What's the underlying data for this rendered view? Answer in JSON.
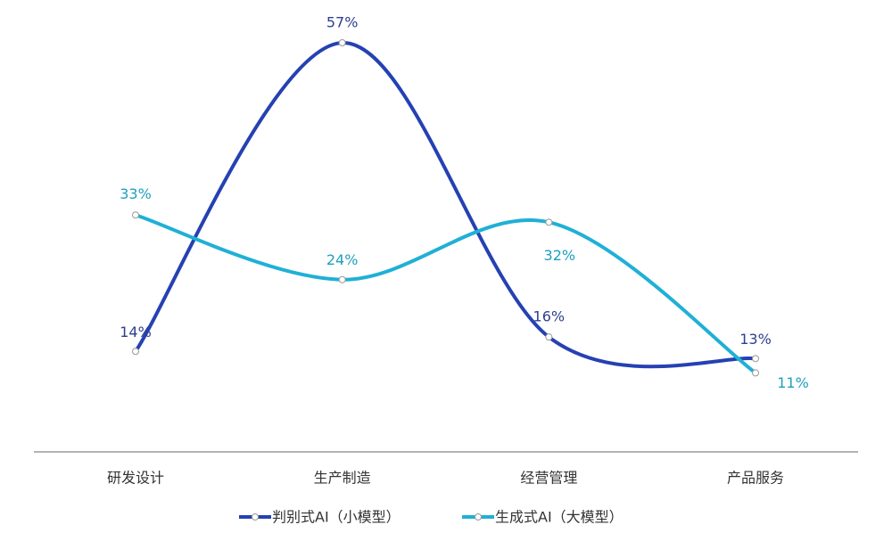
{
  "chart_data": {
    "type": "line",
    "categories": [
      "研发设计",
      "生产制造",
      "经营管理",
      "产品服务"
    ],
    "series": [
      {
        "name": "判别式AI（小模型）",
        "color": "#2541b2",
        "values": [
          14,
          57,
          16,
          13
        ],
        "value_labels": [
          "14%",
          "57%",
          "16%",
          "13%"
        ]
      },
      {
        "name": "生成式AI（大模型）",
        "color": "#1fb0d6",
        "values": [
          33,
          24,
          32,
          11
        ],
        "value_labels": [
          "33%",
          "24%",
          "32%",
          "11%"
        ]
      }
    ],
    "smooth": true
  }
}
